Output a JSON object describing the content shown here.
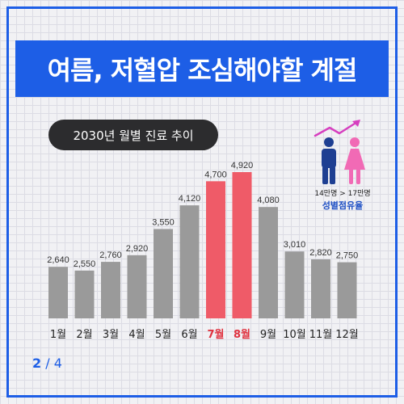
{
  "title": "여름, 저혈압 조심해야할 계절",
  "chart_data": {
    "type": "bar",
    "title": "2030년 월별 진료 추이",
    "categories": [
      "1월",
      "2월",
      "3월",
      "4월",
      "5월",
      "6월",
      "7월",
      "8월",
      "9월",
      "10월",
      "11월",
      "12월"
    ],
    "values": [
      2640,
      2550,
      2760,
      2920,
      3550,
      4120,
      4700,
      4920,
      4080,
      3010,
      2820,
      2750
    ],
    "value_labels": [
      "2,640",
      "2,550",
      "2,760",
      "2,920",
      "3,550",
      "4,120",
      "4,700",
      "4,920",
      "4,080",
      "3,010",
      "2,820",
      "2,750"
    ],
    "highlight": [
      "7월",
      "8월"
    ],
    "ylim": [
      1400,
      4920
    ],
    "grid": false,
    "colors": {
      "bar": "#9a9a9a",
      "highlight_bar": "#ef5b68",
      "highlight_label": "#e0323f",
      "label": "#222222"
    }
  },
  "legend_info": {
    "ratio_text": "14만명 > 17만명",
    "ratio_label": "성별점유율",
    "icons": [
      "male-icon",
      "female-icon",
      "upward-trend-arrow-icon"
    ],
    "colors": {
      "male": "#1e3f92",
      "female": "#f16ab5",
      "arrow": "#d63fbf"
    }
  },
  "page": {
    "current": "2",
    "separator": "/",
    "total": "4"
  }
}
